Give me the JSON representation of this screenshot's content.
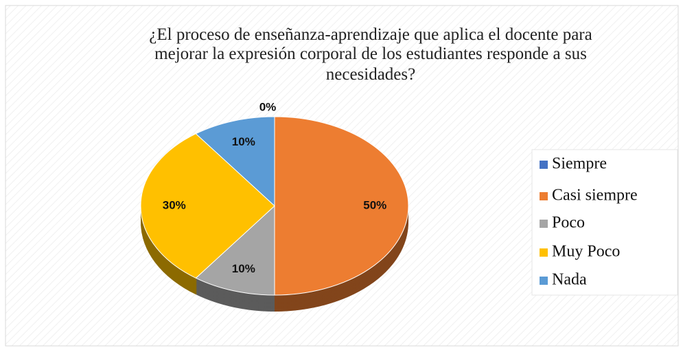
{
  "chart_data": {
    "type": "pie",
    "title": [
      "¿El proceso de enseñanza-aprendizaje que aplica el docente para",
      "mejorar la expresión corporal de los estudiantes responde a sus",
      "necesidades?"
    ],
    "categories": [
      "Siempre",
      "Casi siempre",
      "Poco",
      "Muy Poco",
      "Nada"
    ],
    "values": [
      0,
      50,
      10,
      30,
      10
    ],
    "value_labels": [
      "0%",
      "50%",
      "10%",
      "30%",
      "10%"
    ],
    "colors": [
      "#4472c4",
      "#ed7d31",
      "#a5a5a5",
      "#ffc000",
      "#5b9bd5"
    ],
    "legend": "right"
  }
}
